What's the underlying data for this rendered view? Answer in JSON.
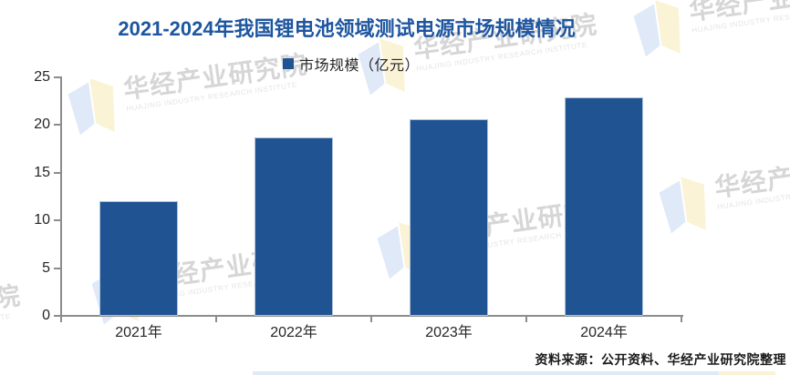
{
  "title": "2021-2024年我国锂电池领域测试电源市场规模情况",
  "legend": {
    "label": "市场规模（亿元）"
  },
  "source": "资料来源：公开资料、华经产业研究院整理",
  "watermark": {
    "text": "华经产业研究院",
    "subtext": "HUAJING INDUSTRY RESEARCH INSTITUTE"
  },
  "colors": {
    "bar": "#1F5391",
    "title": "#1E56A0",
    "axis_line": "#8C8C8C",
    "axis_text": "#262626",
    "watermark_text": "#D6D6D6",
    "watermark_subtext": "#E4E4E4",
    "watermark_logo_blue": "#DFE9F7",
    "watermark_logo_yellow": "#FBF3D6"
  },
  "chart_data": {
    "type": "bar",
    "title": "2021-2024年我国锂电池领域测试电源市场规模情况",
    "categories": [
      "2021年",
      "2022年",
      "2023年",
      "2024年"
    ],
    "series": [
      {
        "name": "市场规模（亿元）",
        "values": [
          12.0,
          18.7,
          20.6,
          22.9
        ]
      }
    ],
    "xlabel": "",
    "ylabel": "",
    "ylim": [
      0,
      25
    ],
    "yticks": [
      0,
      5,
      10,
      15,
      20,
      25
    ],
    "grid": false,
    "legend_position": "top",
    "source_note": "资料来源：公开资料、华经产业研究院整理"
  }
}
